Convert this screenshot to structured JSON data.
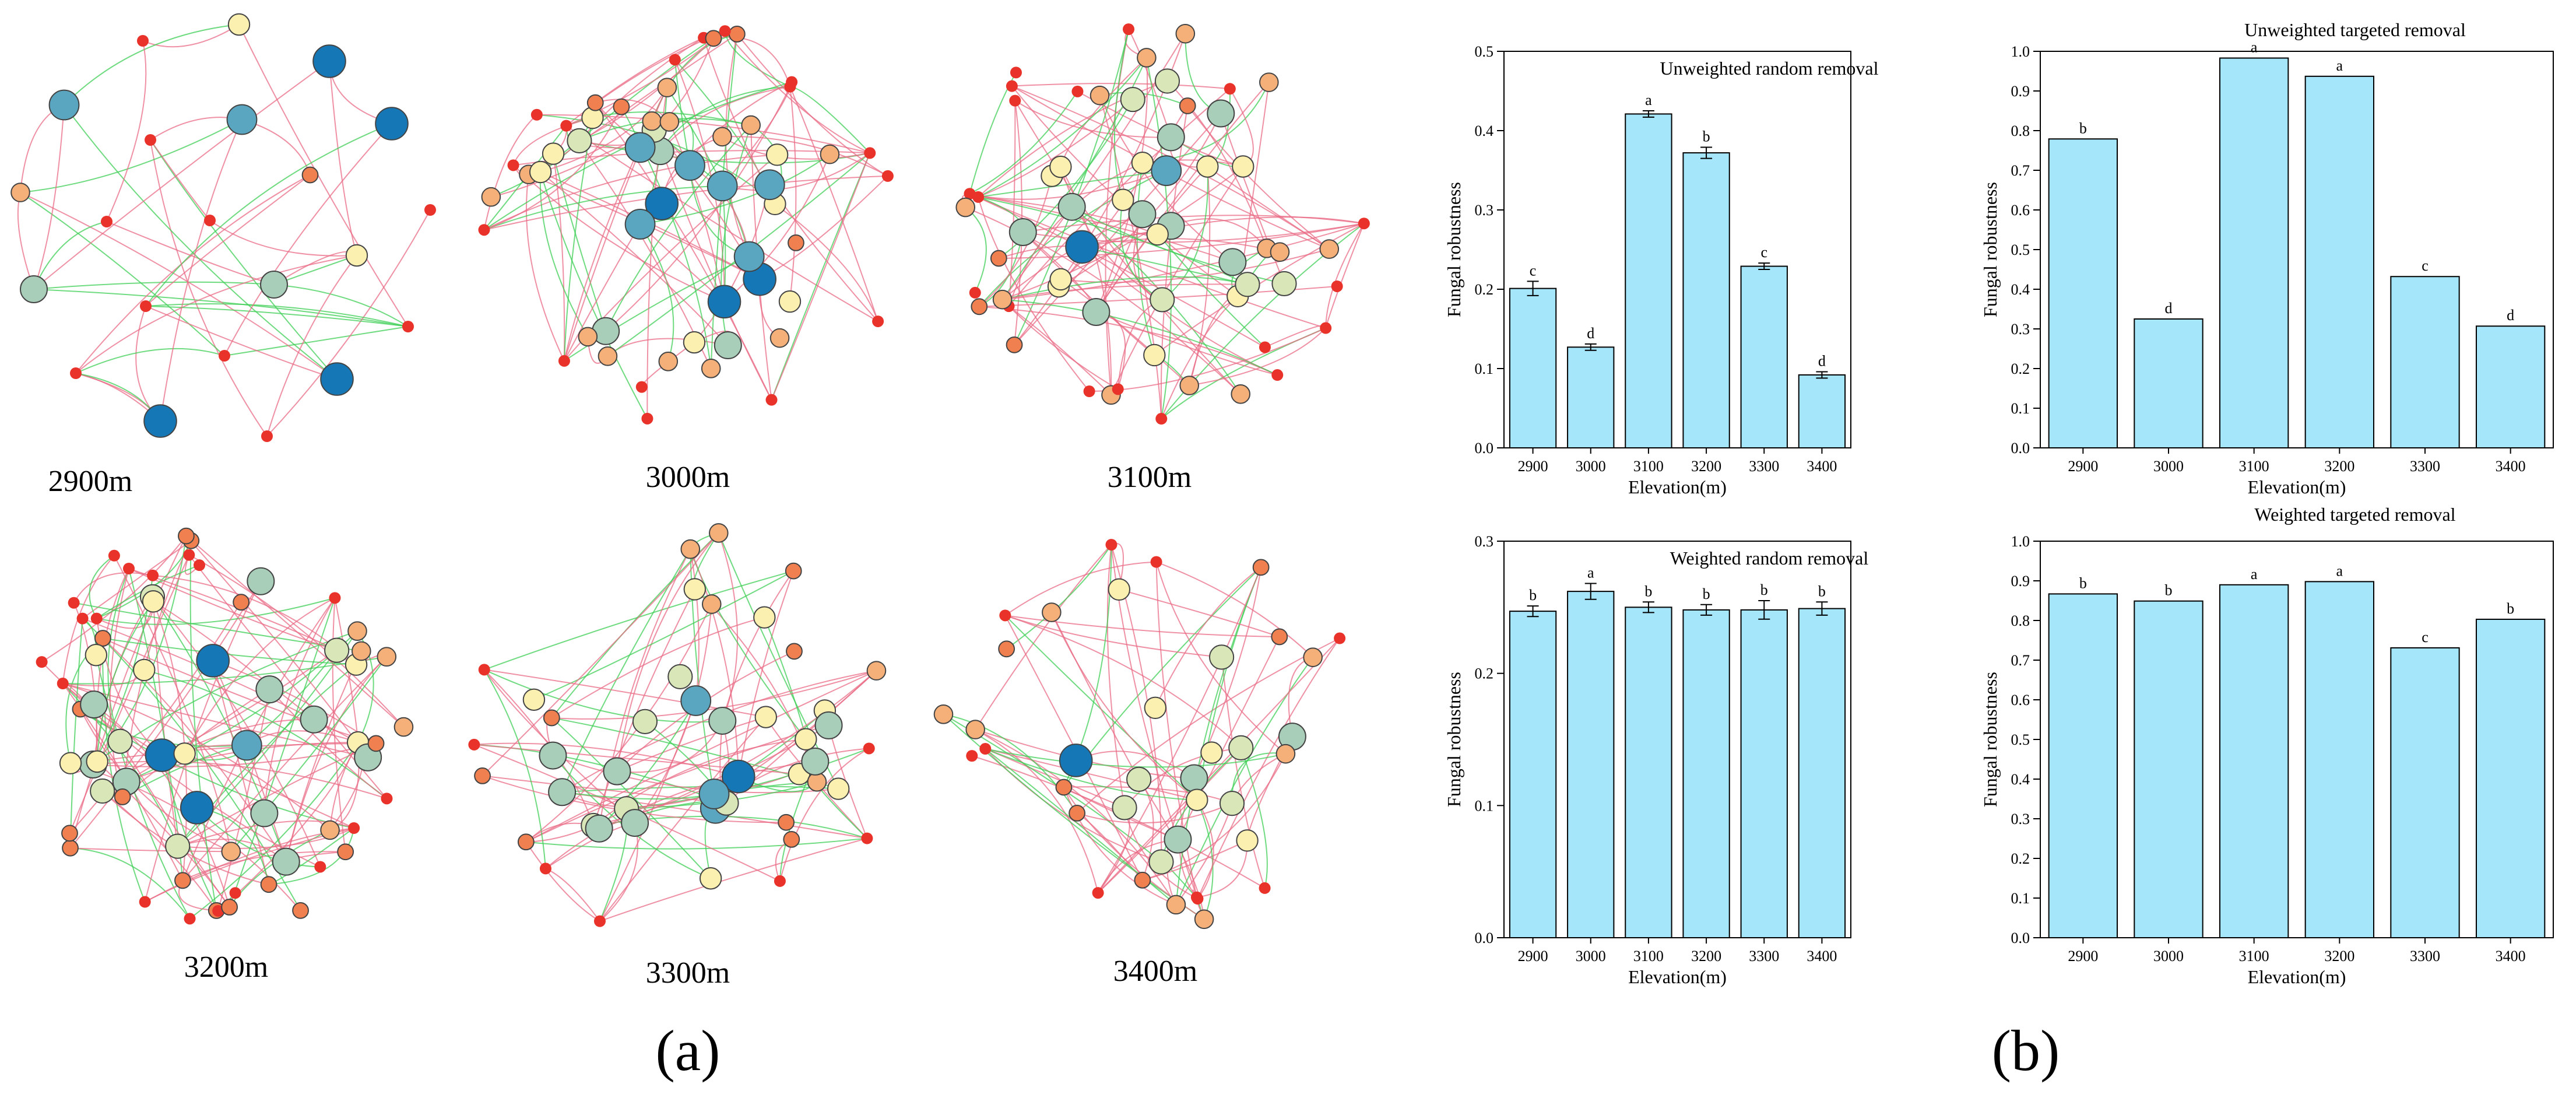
{
  "figure": {
    "panel_a_label": "(a)",
    "panel_b_label": "(b)",
    "network_labels": [
      "2900m",
      "3000m",
      "3100m",
      "3200m",
      "3300m",
      "3400m"
    ]
  },
  "colors": {
    "bar_fill": "#a6e6fb",
    "bar_stroke": "#000000",
    "edge_positive": "#ea6b85",
    "edge_negative": "#3fcf55",
    "node_scale": [
      "#e8322a",
      "#f08050",
      "#f5b07a",
      "#fbf0b0",
      "#d8e6b8",
      "#a8cdb8",
      "#5aa6c0",
      "#1677b6"
    ]
  },
  "chart_data": [
    {
      "type": "bar",
      "title": "Unweighted random removal",
      "xlabel": "Elevation(m)",
      "ylabel": "Fungal robustness",
      "categories": [
        "2900",
        "3000",
        "3100",
        "3200",
        "3300",
        "3400"
      ],
      "values": [
        0.201,
        0.127,
        0.421,
        0.372,
        0.229,
        0.092
      ],
      "errors": [
        0.009,
        0.004,
        0.004,
        0.007,
        0.004,
        0.004
      ],
      "letters": [
        "c",
        "d",
        "a",
        "b",
        "c",
        "d"
      ],
      "ylim": [
        0,
        0.5
      ],
      "yticks": [
        "0.0",
        "0.1",
        "0.2",
        "0.3",
        "0.4",
        "0.5"
      ],
      "title_inside": true
    },
    {
      "type": "bar",
      "title": "Unweighted targeted removal",
      "xlabel": "Elevation(m)",
      "ylabel": "Fungal robustness",
      "categories": [
        "2900",
        "3000",
        "3100",
        "3200",
        "3300",
        "3400"
      ],
      "values": [
        0.779,
        0.325,
        0.983,
        0.937,
        0.432,
        0.307
      ],
      "errors": [
        0,
        0,
        0,
        0,
        0,
        0
      ],
      "letters": [
        "b",
        "d",
        "a",
        "a",
        "c",
        "d"
      ],
      "ylim": [
        0,
        1.0
      ],
      "yticks": [
        "0.0",
        "0.1",
        "0.2",
        "0.3",
        "0.4",
        "0.5",
        "0.6",
        "0.7",
        "0.8",
        "0.9",
        "1.0"
      ],
      "title_inside": false
    },
    {
      "type": "bar",
      "title": "Weighted random removal",
      "xlabel": "Elevation(m)",
      "ylabel": "Fungal robustness",
      "categories": [
        "2900",
        "3000",
        "3100",
        "3200",
        "3300",
        "3400"
      ],
      "values": [
        0.247,
        0.262,
        0.25,
        0.248,
        0.248,
        0.249
      ],
      "errors": [
        0.004,
        0.006,
        0.004,
        0.004,
        0.007,
        0.005
      ],
      "letters": [
        "b",
        "a",
        "b",
        "b",
        "b",
        "b"
      ],
      "ylim": [
        0,
        0.3
      ],
      "yticks": [
        "0.0",
        "0.1",
        "0.2",
        "0.3"
      ],
      "title_inside": true
    },
    {
      "type": "bar",
      "title": "Weighted targeted removal",
      "xlabel": "Elevation(m)",
      "ylabel": "Fungal robustness",
      "categories": [
        "2900",
        "3000",
        "3100",
        "3200",
        "3300",
        "3400"
      ],
      "values": [
        0.867,
        0.849,
        0.89,
        0.898,
        0.731,
        0.803
      ],
      "errors": [
        0,
        0,
        0,
        0,
        0,
        0
      ],
      "letters": [
        "b",
        "b",
        "a",
        "a",
        "c",
        "b"
      ],
      "ylim": [
        0,
        1.0
      ],
      "yticks": [
        "0.0",
        "0.1",
        "0.2",
        "0.3",
        "0.4",
        "0.5",
        "0.6",
        "0.7",
        "0.8",
        "0.9",
        "1.0"
      ],
      "title_inside": false
    }
  ]
}
